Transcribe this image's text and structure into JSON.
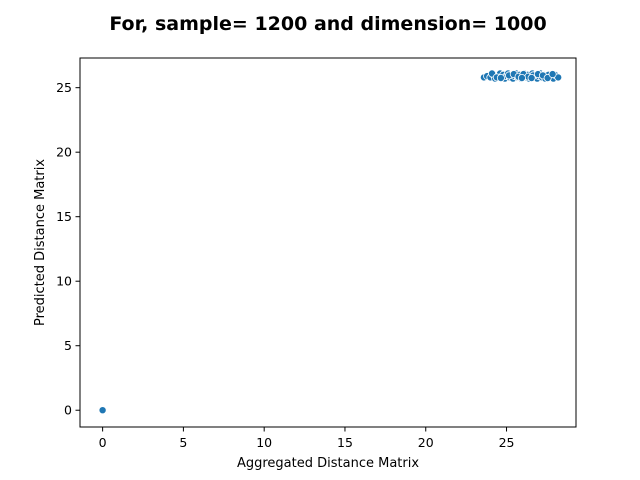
{
  "chart_data": {
    "type": "scatter",
    "title": "For, sample= 1200 and dimension= 1000",
    "xlabel": "Aggregated Distance Matrix",
    "ylabel": "Predicted Distance Matrix",
    "xlim": [
      -1.4,
      29.3
    ],
    "ylim": [
      -1.3,
      27.3
    ],
    "xticks": [
      0,
      5,
      10,
      15,
      20,
      25
    ],
    "yticks": [
      0,
      5,
      10,
      15,
      20,
      25
    ],
    "grid": false,
    "legend": "none",
    "marker_color": "#1f77b4",
    "marker_edge_color": "#ffffff",
    "series": [
      {
        "points": [
          [
            0.0,
            0.0
          ],
          [
            23.6,
            25.8
          ],
          [
            23.8,
            25.9
          ],
          [
            24.0,
            25.8
          ],
          [
            24.2,
            26.0
          ],
          [
            24.3,
            25.7
          ],
          [
            24.5,
            25.9
          ],
          [
            24.6,
            26.1
          ],
          [
            24.7,
            25.8
          ],
          [
            24.8,
            26.0
          ],
          [
            24.9,
            25.7
          ],
          [
            25.0,
            25.9
          ],
          [
            25.1,
            26.1
          ],
          [
            25.2,
            25.8
          ],
          [
            25.3,
            26.0
          ],
          [
            25.4,
            25.7
          ],
          [
            25.5,
            25.9
          ],
          [
            25.6,
            26.1
          ],
          [
            25.7,
            25.8
          ],
          [
            25.8,
            26.0
          ],
          [
            25.9,
            25.7
          ],
          [
            26.0,
            25.9
          ],
          [
            26.1,
            26.1
          ],
          [
            26.2,
            25.8
          ],
          [
            26.3,
            26.0
          ],
          [
            26.4,
            25.7
          ],
          [
            26.5,
            25.9
          ],
          [
            26.6,
            26.1
          ],
          [
            26.7,
            25.8
          ],
          [
            26.8,
            26.0
          ],
          [
            26.9,
            25.7
          ],
          [
            27.0,
            25.9
          ],
          [
            27.1,
            26.1
          ],
          [
            27.2,
            25.8
          ],
          [
            27.3,
            26.0
          ],
          [
            27.4,
            25.7
          ],
          [
            27.5,
            25.9
          ],
          [
            27.6,
            26.0
          ],
          [
            27.7,
            25.8
          ],
          [
            27.8,
            25.9
          ],
          [
            27.9,
            25.7
          ],
          [
            28.0,
            26.0
          ],
          [
            28.2,
            25.8
          ],
          [
            24.1,
            26.1
          ],
          [
            24.4,
            25.8
          ],
          [
            25.15,
            25.95
          ],
          [
            25.45,
            26.05
          ],
          [
            25.75,
            25.85
          ],
          [
            26.05,
            26.05
          ],
          [
            26.35,
            25.85
          ],
          [
            26.65,
            25.95
          ],
          [
            26.95,
            26.05
          ],
          [
            27.25,
            25.95
          ],
          [
            27.55,
            25.75
          ],
          [
            27.85,
            26.05
          ],
          [
            24.65,
            25.75
          ],
          [
            25.95,
            25.75
          ],
          [
            26.55,
            25.75
          ]
        ]
      }
    ]
  }
}
